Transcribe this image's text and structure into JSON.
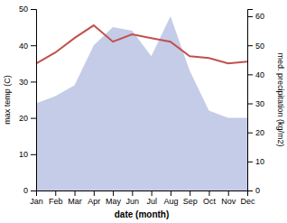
{
  "chart_data": {
    "type": "line",
    "categories": [
      "Jan",
      "Feb",
      "Mar",
      "Apr",
      "May",
      "Jun",
      "Jul",
      "Aug",
      "Sep",
      "Oct",
      "Nov",
      "Dec"
    ],
    "series": [
      {
        "type": "area",
        "color": "#c5cce8",
        "values": [
          24,
          26,
          29,
          40,
          45,
          44,
          37,
          48,
          33,
          22,
          20,
          20
        ]
      },
      {
        "type": "line",
        "color": "#c0504d",
        "values": [
          35,
          38,
          42,
          45.5,
          41,
          43,
          42,
          41,
          37,
          36.5,
          35,
          35.5
        ]
      }
    ],
    "x_label": "date (month)",
    "y_label": "max temp (C)",
    "y2_label": "med. precipitation (kg/m2)",
    "ylim": [
      0,
      50
    ],
    "yticks": [
      0,
      10,
      20,
      30,
      40,
      50
    ],
    "y2lim": [
      0,
      62.5
    ],
    "y2ticks": [
      0,
      10,
      20,
      30,
      40,
      50,
      60
    ],
    "grid": false
  }
}
